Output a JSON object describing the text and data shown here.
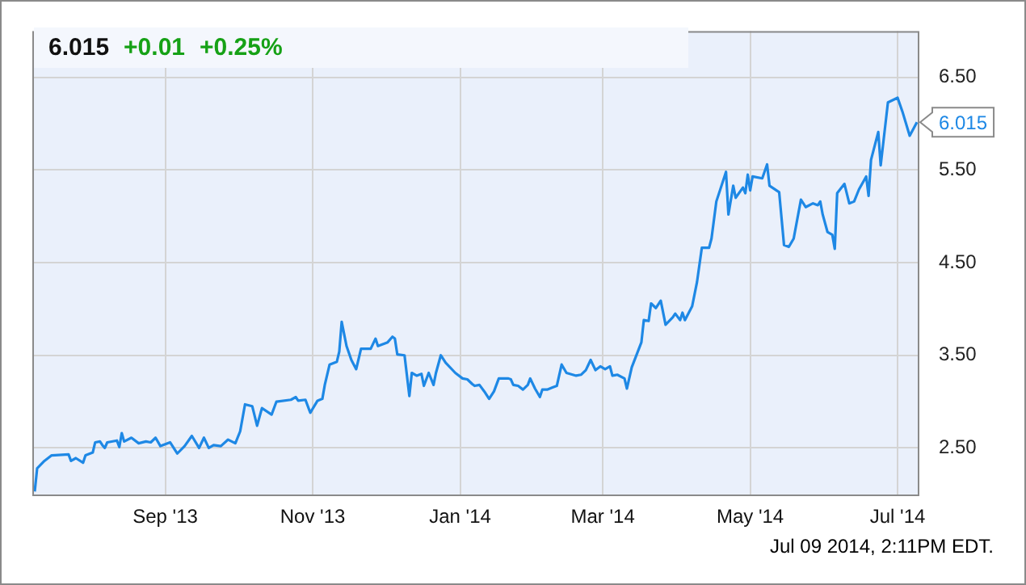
{
  "chart_data": {
    "type": "line",
    "x": [
      "2013-07-09",
      "2013-07-10",
      "2013-07-13",
      "2013-07-16",
      "2013-07-23",
      "2013-07-24",
      "2013-07-26",
      "2013-07-29",
      "2013-07-30",
      "2013-08-02",
      "2013-08-03",
      "2013-08-05",
      "2013-08-06",
      "2013-08-07",
      "2013-08-08",
      "2013-08-12",
      "2013-08-13",
      "2013-08-14",
      "2013-08-15",
      "2013-08-18",
      "2013-08-21",
      "2013-08-24",
      "2013-08-26",
      "2013-08-28",
      "2013-08-30",
      "2013-09-03",
      "2013-09-06",
      "2013-09-09",
      "2013-09-12",
      "2013-09-15",
      "2013-09-17",
      "2013-09-19",
      "2013-09-21",
      "2013-09-24",
      "2013-09-27",
      "2013-09-30",
      "2013-10-02",
      "2013-10-04",
      "2013-10-07",
      "2013-10-09",
      "2013-10-11",
      "2013-10-15",
      "2013-10-17",
      "2013-10-23",
      "2013-10-25",
      "2013-10-26",
      "2013-10-29",
      "2013-10-31",
      "2013-11-03",
      "2013-11-05",
      "2013-11-06",
      "2013-11-08",
      "2013-11-11",
      "2013-11-12",
      "2013-11-13",
      "2013-11-15",
      "2013-11-17",
      "2013-11-19",
      "2013-11-21",
      "2013-11-25",
      "2013-11-27",
      "2013-11-28",
      "2013-12-02",
      "2013-12-04",
      "2013-12-05",
      "2013-12-06",
      "2013-12-09",
      "2013-12-11",
      "2013-12-12",
      "2013-12-14",
      "2013-12-16",
      "2013-12-17",
      "2013-12-19",
      "2013-12-21",
      "2013-12-22",
      "2013-12-24",
      "2013-12-26",
      "2013-12-30",
      "2014-01-02",
      "2014-01-04",
      "2014-01-06",
      "2014-01-07",
      "2014-01-09",
      "2014-01-11",
      "2014-01-13",
      "2014-01-15",
      "2014-01-17",
      "2014-01-21",
      "2014-01-22",
      "2014-01-23",
      "2014-01-25",
      "2014-01-27",
      "2014-01-29",
      "2014-01-30",
      "2014-02-01",
      "2014-02-03",
      "2014-02-04",
      "2014-02-06",
      "2014-02-08",
      "2014-02-10",
      "2014-02-12",
      "2014-02-14",
      "2014-02-18",
      "2014-02-20",
      "2014-02-22",
      "2014-02-24",
      "2014-02-26",
      "2014-02-28",
      "2014-03-02",
      "2014-03-04",
      "2014-03-05",
      "2014-03-07",
      "2014-03-10",
      "2014-03-11",
      "2014-03-13",
      "2014-03-17",
      "2014-03-18",
      "2014-03-20",
      "2014-03-21",
      "2014-03-23",
      "2014-03-25",
      "2014-03-27",
      "2014-03-30",
      "2014-03-31",
      "2014-04-02",
      "2014-04-03",
      "2014-04-04",
      "2014-04-07",
      "2014-04-09",
      "2014-04-11",
      "2014-04-14",
      "2014-04-15",
      "2014-04-17",
      "2014-04-21",
      "2014-04-22",
      "2014-04-24",
      "2014-04-25",
      "2014-04-28",
      "2014-04-29",
      "2014-04-30",
      "2014-05-01",
      "2014-05-02",
      "2014-05-06",
      "2014-05-08",
      "2014-05-09",
      "2014-05-13",
      "2014-05-15",
      "2014-05-17",
      "2014-05-19",
      "2014-05-22",
      "2014-05-24",
      "2014-05-27",
      "2014-05-29",
      "2014-05-30",
      "2014-05-31",
      "2014-06-02",
      "2014-06-04",
      "2014-06-05",
      "2014-06-06",
      "2014-06-09",
      "2014-06-11",
      "2014-06-13",
      "2014-06-15",
      "2014-06-18",
      "2014-06-19",
      "2014-06-20",
      "2014-06-23",
      "2014-06-24",
      "2014-06-27",
      "2014-07-01",
      "2014-07-03",
      "2014-07-06",
      "2014-07-09"
    ],
    "series": [
      {
        "color": "#1e88e5",
        "values": [
          2.03,
          2.28,
          2.36,
          2.42,
          2.43,
          2.36,
          2.39,
          2.34,
          2.42,
          2.45,
          2.56,
          2.57,
          2.53,
          2.5,
          2.56,
          2.58,
          2.51,
          2.66,
          2.57,
          2.61,
          2.55,
          2.57,
          2.56,
          2.61,
          2.52,
          2.56,
          2.44,
          2.52,
          2.63,
          2.5,
          2.61,
          2.5,
          2.53,
          2.52,
          2.59,
          2.55,
          2.68,
          2.97,
          2.95,
          2.74,
          2.93,
          2.86,
          3.0,
          3.02,
          3.05,
          3.01,
          3.02,
          2.88,
          3.01,
          3.03,
          3.18,
          3.4,
          3.43,
          3.54,
          3.86,
          3.6,
          3.45,
          3.35,
          3.57,
          3.57,
          3.68,
          3.6,
          3.64,
          3.7,
          3.68,
          3.51,
          3.5,
          3.06,
          3.31,
          3.28,
          3.3,
          3.17,
          3.31,
          3.18,
          3.31,
          3.5,
          3.42,
          3.31,
          3.25,
          3.24,
          3.19,
          3.17,
          3.18,
          3.11,
          3.03,
          3.11,
          3.25,
          3.25,
          3.24,
          3.18,
          3.17,
          3.13,
          3.18,
          3.25,
          3.14,
          3.05,
          3.13,
          3.13,
          3.15,
          3.17,
          3.4,
          3.31,
          3.28,
          3.29,
          3.34,
          3.45,
          3.34,
          3.38,
          3.35,
          3.38,
          3.28,
          3.29,
          3.25,
          3.14,
          3.37,
          3.64,
          3.88,
          3.87,
          4.06,
          4.01,
          4.09,
          3.83,
          3.91,
          3.95,
          3.88,
          3.96,
          3.88,
          4.03,
          4.29,
          4.66,
          4.66,
          4.76,
          5.16,
          5.48,
          5.02,
          5.33,
          5.2,
          5.31,
          5.25,
          5.45,
          5.28,
          5.43,
          5.41,
          5.56,
          5.33,
          5.26,
          4.69,
          4.67,
          4.76,
          5.18,
          5.1,
          5.14,
          5.12,
          5.16,
          5.02,
          4.83,
          4.8,
          4.65,
          5.25,
          5.35,
          5.14,
          5.16,
          5.29,
          5.43,
          5.22,
          5.61,
          5.91,
          5.55,
          6.23,
          6.28,
          6.13,
          5.87,
          6.015
        ]
      }
    ],
    "xlim": [
      "2013-07-08",
      "2014-07-10"
    ],
    "xticks": [
      {
        "value": "2013-09-01",
        "label": "Sep '13"
      },
      {
        "value": "2013-11-01",
        "label": "Nov '13"
      },
      {
        "value": "2014-01-01",
        "label": "Jan '14"
      },
      {
        "value": "2014-03-01",
        "label": "Mar '14"
      },
      {
        "value": "2014-05-01",
        "label": "May '14"
      },
      {
        "value": "2014-07-01",
        "label": "Jul '14"
      }
    ],
    "ylim": [
      1.98,
      7.0
    ],
    "yticks": [
      {
        "value": 2.5,
        "label": "2.50"
      },
      {
        "value": 3.5,
        "label": "3.50"
      },
      {
        "value": 4.5,
        "label": "4.50"
      },
      {
        "value": 5.5,
        "label": "5.50"
      },
      {
        "value": 6.5,
        "label": "6.50"
      }
    ],
    "grid": true,
    "legend": false,
    "marker": "none",
    "line_style": "solid",
    "annotations": [
      "6.015",
      "+0.01",
      "+0.25%",
      "Jul 09 2014, 2:11PM EDT.",
      {
        "text": "6.015",
        "x": "2014-07-09",
        "y": 6.015
      }
    ]
  }
}
